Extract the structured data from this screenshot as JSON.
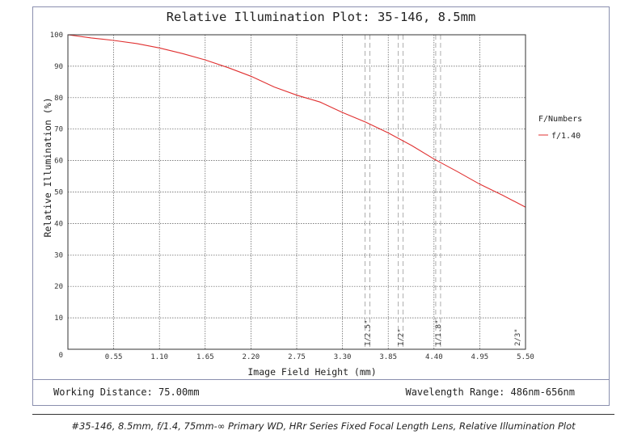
{
  "chart_data": {
    "type": "line",
    "title": "Relative Illumination Plot: 35-146, 8.5mm",
    "xlabel": "Image Field Height (mm)",
    "ylabel": "Relative Illumination (%)",
    "xlim": [
      0,
      5.5
    ],
    "ylim": [
      0,
      100
    ],
    "x_ticks": [
      0,
      0.55,
      1.1,
      1.65,
      2.2,
      2.75,
      3.3,
      3.85,
      4.4,
      4.95,
      5.5
    ],
    "x_tick_labels": [
      "0.55",
      "1.10",
      "1.65",
      "2.20",
      "2.75",
      "3.30",
      "3.85",
      "4.40",
      "4.95",
      "5.50"
    ],
    "y_tick_labels": [
      "0",
      "10",
      "20",
      "30",
      "40",
      "50",
      "60",
      "70",
      "80",
      "90",
      "100"
    ],
    "y_ticks": [
      0,
      10,
      20,
      30,
      40,
      50,
      60,
      70,
      80,
      90,
      100
    ],
    "grid": true,
    "legend_title": "F/Numbers",
    "legend_position": "right",
    "series": [
      {
        "name": "f/1.40",
        "color": "#e03030",
        "x": [
          0,
          0.28,
          0.55,
          0.83,
          1.1,
          1.38,
          1.65,
          1.93,
          2.2,
          2.48,
          2.75,
          3.03,
          3.3,
          3.58,
          3.85,
          4.13,
          4.4,
          4.68,
          4.95,
          5.23,
          5.5
        ],
        "y": [
          100,
          99.0,
          98.2,
          97.2,
          95.8,
          94.0,
          92.0,
          89.5,
          86.8,
          83.4,
          80.8,
          78.6,
          75.3,
          72.2,
          68.8,
          64.8,
          60.5,
          56.5,
          52.5,
          48.9,
          45.2
        ]
      }
    ],
    "sensor_markers": [
      {
        "label": "1/2.5\"",
        "x": 3.6
      },
      {
        "label": "1/2\"",
        "x": 4.0
      },
      {
        "label": "1/1.8\"",
        "x": 4.45
      },
      {
        "label": "2/3\"",
        "x": 5.5
      }
    ]
  },
  "footer": {
    "working_distance": "Working Distance: 75.00mm",
    "wavelength_range": "Wavelength Range: 486nm-656nm"
  },
  "caption": "#35-146, 8.5mm, f/1.4, 75mm-∞ Primary WD, HRr Series Fixed Focal Length Lens, Relative Illumination Plot",
  "colors": {
    "frame": "#8a8fae",
    "grid": "#555555",
    "series": "#e03030"
  }
}
